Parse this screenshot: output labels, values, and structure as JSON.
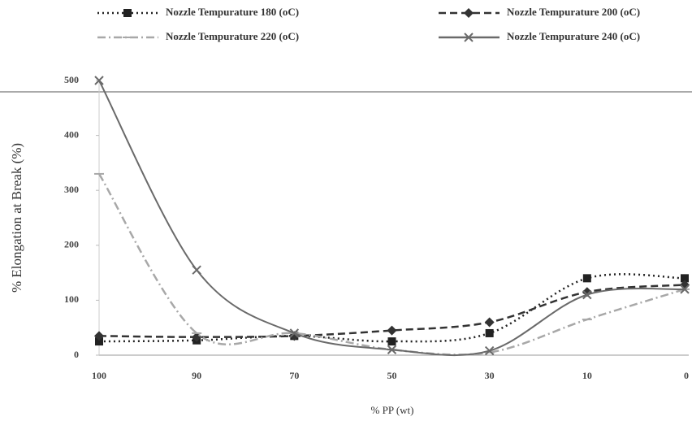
{
  "chart_data": {
    "type": "line",
    "y_label": "% Elongation at Break (%)",
    "x_label": "% PP (wt)",
    "categories": [
      "100",
      "90",
      "70",
      "50",
      "30",
      "10",
      "0"
    ],
    "series": [
      {
        "name": "Nozzle Tempurature 180 (oC)",
        "color": "#222222",
        "style": "dotted",
        "marker": "square",
        "values": [
          25,
          27,
          35,
          25,
          40,
          140,
          140
        ]
      },
      {
        "name": "Nozzle Tempurature 200 (oC)",
        "color": "#333333",
        "style": "dashed",
        "marker": "diamond",
        "values": [
          35,
          33,
          35,
          45,
          60,
          115,
          128
        ]
      },
      {
        "name": "Nozzle Tempurature 220 (oC)",
        "color": "#a8a8a8",
        "style": "dashdot",
        "marker": "dash",
        "values": [
          330,
          40,
          40,
          10,
          5,
          65,
          120
        ]
      },
      {
        "name": "Nozzle Tempurature 240 (oC)",
        "color": "#6a6a6a",
        "style": "solid",
        "marker": "cross",
        "values": [
          500,
          155,
          40,
          10,
          8,
          110,
          120
        ]
      }
    ],
    "ylim": [
      0,
      500
    ],
    "yticks": [
      0,
      100,
      200,
      300,
      400,
      500
    ],
    "grid": false
  }
}
